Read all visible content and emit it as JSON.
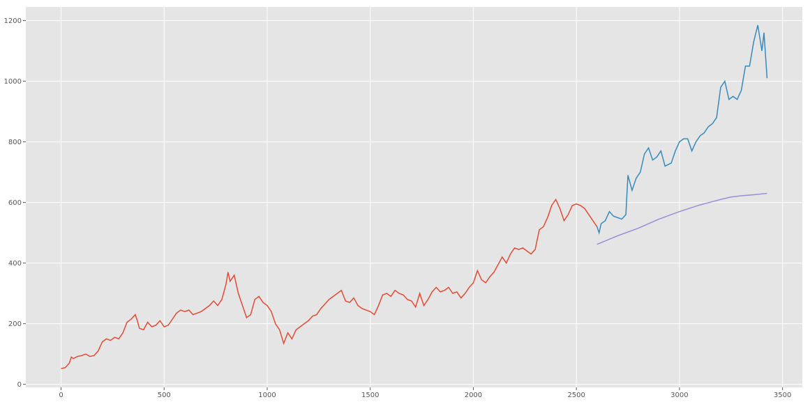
{
  "chart_data": {
    "type": "line",
    "xlim": [
      -171,
      3596
    ],
    "ylim": [
      -10,
      1245
    ],
    "xticks": [
      0,
      500,
      1000,
      1500,
      2000,
      2500,
      3000,
      3500
    ],
    "yticks": [
      0,
      200,
      400,
      600,
      800,
      1000,
      1200
    ],
    "grid": true,
    "series": [
      {
        "color": "#E24A33",
        "x": [
          0,
          20,
          40,
          50,
          60,
          80,
          100,
          120,
          140,
          160,
          180,
          200,
          220,
          240,
          260,
          280,
          300,
          320,
          340,
          360,
          370,
          380,
          400,
          420,
          440,
          460,
          480,
          500,
          520,
          540,
          560,
          580,
          600,
          620,
          640,
          660,
          680,
          700,
          720,
          740,
          760,
          780,
          800,
          810,
          820,
          840,
          860,
          880,
          900,
          920,
          940,
          960,
          980,
          1000,
          1020,
          1040,
          1060,
          1080,
          1100,
          1120,
          1140,
          1160,
          1180,
          1200,
          1220,
          1240,
          1260,
          1280,
          1300,
          1320,
          1340,
          1360,
          1380,
          1400,
          1420,
          1440,
          1460,
          1480,
          1500,
          1520,
          1540,
          1560,
          1580,
          1600,
          1620,
          1640,
          1660,
          1680,
          1700,
          1720,
          1740,
          1760,
          1780,
          1800,
          1820,
          1840,
          1860,
          1880,
          1900,
          1920,
          1940,
          1960,
          1980,
          2000,
          2020,
          2040,
          2060,
          2080,
          2100,
          2120,
          2140,
          2160,
          2180,
          2200,
          2220,
          2240,
          2260,
          2280,
          2300,
          2320,
          2340,
          2360,
          2380,
          2400,
          2420,
          2440,
          2460,
          2480,
          2500,
          2520,
          2540,
          2560,
          2580,
          2600
        ],
        "values": [
          52,
          55,
          70,
          90,
          85,
          92,
          95,
          100,
          92,
          95,
          110,
          140,
          150,
          145,
          155,
          150,
          170,
          205,
          215,
          230,
          210,
          185,
          180,
          205,
          190,
          195,
          210,
          190,
          195,
          215,
          235,
          245,
          240,
          245,
          230,
          235,
          240,
          250,
          260,
          275,
          260,
          280,
          330,
          370,
          340,
          360,
          300,
          260,
          220,
          230,
          280,
          290,
          270,
          260,
          240,
          200,
          180,
          135,
          170,
          150,
          180,
          190,
          200,
          210,
          225,
          230,
          250,
          265,
          280,
          290,
          300,
          310,
          275,
          270,
          285,
          260,
          250,
          245,
          240,
          230,
          260,
          295,
          300,
          290,
          310,
          300,
          295,
          280,
          275,
          255,
          300,
          260,
          280,
          305,
          320,
          305,
          310,
          320,
          300,
          305,
          285,
          300,
          320,
          335,
          375,
          345,
          335,
          355,
          370,
          395,
          420,
          400,
          430,
          450,
          445,
          450,
          440,
          430,
          445,
          510,
          520,
          550,
          590,
          610,
          580,
          540,
          560,
          590,
          595,
          590,
          580,
          560,
          540,
          520
        ]
      },
      {
        "color": "#348ABD",
        "x": [
          2600,
          2610,
          2620,
          2640,
          2660,
          2680,
          2700,
          2720,
          2740,
          2750,
          2770,
          2790,
          2810,
          2830,
          2850,
          2870,
          2890,
          2910,
          2930,
          2960,
          2980,
          3000,
          3020,
          3040,
          3060,
          3080,
          3100,
          3120,
          3140,
          3160,
          3180,
          3200,
          3220,
          3240,
          3260,
          3280,
          3300,
          3320,
          3340,
          3360,
          3380,
          3400,
          3410,
          3425
        ],
        "values": [
          520,
          500,
          530,
          540,
          570,
          555,
          550,
          545,
          560,
          690,
          640,
          680,
          700,
          760,
          780,
          740,
          750,
          770,
          720,
          730,
          770,
          800,
          810,
          810,
          770,
          800,
          820,
          830,
          850,
          860,
          880,
          980,
          1000,
          940,
          950,
          940,
          970,
          1050,
          1050,
          1130,
          1185,
          1100,
          1160,
          1010
        ]
      },
      {
        "color": "#988ED5",
        "x": [
          2600,
          2700,
          2800,
          2900,
          3000,
          3100,
          3200,
          3250,
          3300,
          3350,
          3425
        ],
        "values": [
          462,
          490,
          515,
          545,
          570,
          592,
          610,
          618,
          622,
          625,
          630
        ]
      }
    ]
  }
}
